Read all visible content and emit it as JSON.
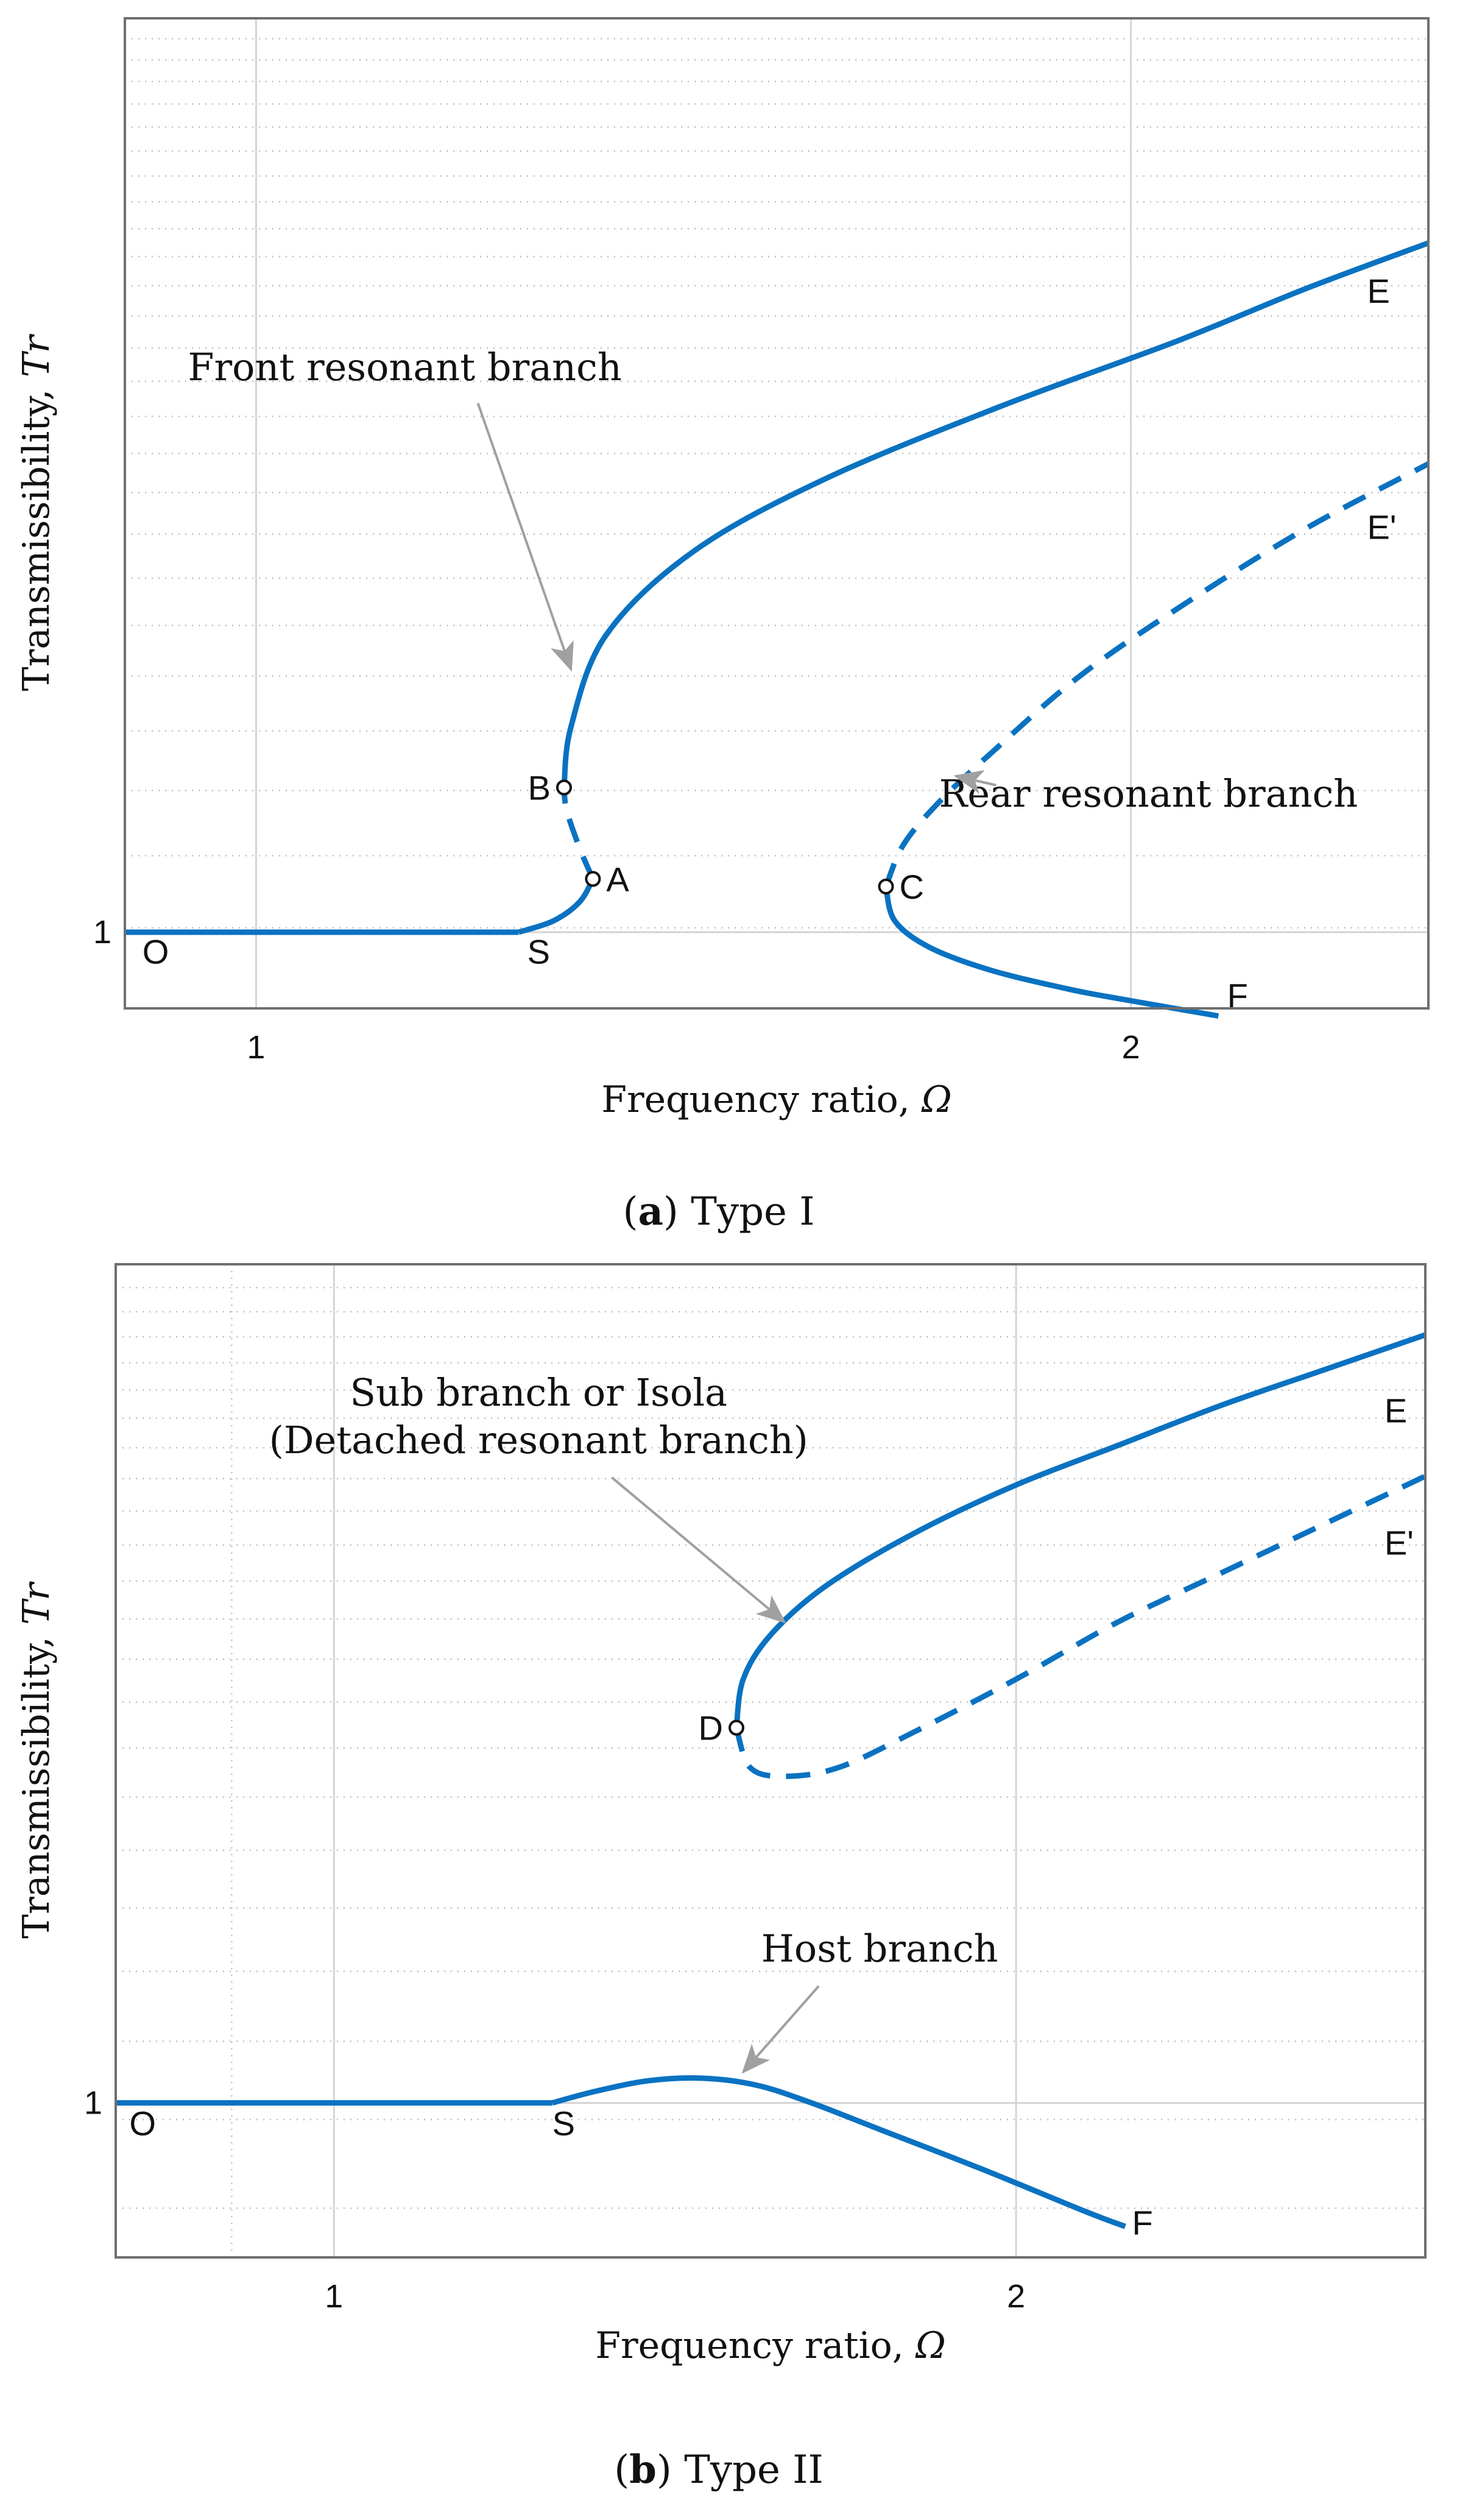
{
  "colors": {
    "curve": "#0a72c1",
    "axes": "#6f6f6f",
    "grid_major": "#d4d4d4",
    "grid_minor": "#bdbdbd",
    "annotation_arrow": "#a0a0a0",
    "text": "#111111"
  },
  "chart_data": [
    {
      "type": "line",
      "panel_label": "a",
      "caption": "Type I",
      "xlabel": "Frequency ratio, ",
      "xlabel_symbol": "Ω",
      "ylabel": "Transmissibility, ",
      "ylabel_symbol": "Tr",
      "xlim": [
        0.85,
        2.34
      ],
      "ylim": [
        0.8,
        3.4
      ],
      "xticks": [
        1,
        2
      ],
      "yticks": [
        1
      ],
      "series": [
        {
          "name": "host-flat",
          "style": "solid",
          "points": [
            [
              0.85,
              1.0
            ],
            [
              1.3,
              1.0
            ]
          ]
        },
        {
          "name": "front-rise",
          "style": "solid",
          "points": [
            [
              1.3,
              1.0
            ],
            [
              1.34,
              1.03
            ],
            [
              1.37,
              1.08
            ],
            [
              1.385,
              1.14
            ]
          ]
        },
        {
          "name": "front-unstable",
          "style": "dashed",
          "points": [
            [
              1.385,
              1.14
            ],
            [
              1.37,
              1.22
            ],
            [
              1.355,
              1.32
            ],
            [
              1.352,
              1.38
            ]
          ]
        },
        {
          "name": "front-resonant-branch",
          "style": "solid",
          "points": [
            [
              1.352,
              1.38
            ],
            [
              1.36,
              1.54
            ],
            [
              1.4,
              1.78
            ],
            [
              1.5,
              2.0
            ],
            [
              1.65,
              2.19
            ],
            [
              1.85,
              2.38
            ],
            [
              2.05,
              2.55
            ],
            [
              2.2,
              2.69
            ],
            [
              2.34,
              2.81
            ]
          ]
        },
        {
          "name": "rear-upper-dashed",
          "style": "dashed",
          "points": [
            [
              1.72,
              1.12
            ],
            [
              1.74,
              1.23
            ],
            [
              1.78,
              1.34
            ],
            [
              1.84,
              1.47
            ],
            [
              1.94,
              1.67
            ],
            [
              2.06,
              1.86
            ],
            [
              2.2,
              2.06
            ],
            [
              2.34,
              2.23
            ]
          ]
        },
        {
          "name": "rear-lower",
          "style": "solid",
          "points": [
            [
              1.72,
              1.12
            ],
            [
              1.73,
              1.03
            ],
            [
              1.77,
              0.96
            ],
            [
              1.84,
              0.9
            ],
            [
              1.93,
              0.85
            ],
            [
              2.0,
              0.82
            ],
            [
              2.1,
              0.78
            ]
          ]
        }
      ],
      "markers": [
        {
          "label": "B",
          "x": 1.352,
          "y": 1.38
        },
        {
          "label": "A",
          "x": 1.385,
          "y": 1.14
        },
        {
          "label": "C",
          "x": 1.72,
          "y": 1.12
        }
      ],
      "point_labels": [
        {
          "label": "O",
          "x": 0.87,
          "y": 0.985
        },
        {
          "label": "S",
          "x": 1.31,
          "y": 0.985
        },
        {
          "label": "E",
          "x": 2.27,
          "y": 2.72
        },
        {
          "label": "E'",
          "x": 2.27,
          "y": 2.1
        },
        {
          "label": "F",
          "x": 2.11,
          "y": 0.87
        }
      ],
      "annotations": [
        {
          "text": "Front resonant branch",
          "tx": 1.17,
          "ty": 2.45,
          "ax": 1.36,
          "ay": 1.69
        },
        {
          "text": "Rear resonant branch",
          "tx": 2.02,
          "ty": 1.33,
          "ax": 1.8,
          "ay": 1.41
        }
      ]
    },
    {
      "type": "line",
      "panel_label": "b",
      "caption": "Type II",
      "xlabel": "Frequency ratio, ",
      "xlabel_symbol": "Ω",
      "ylabel": "Transmissibility, ",
      "ylabel_symbol": "Tr",
      "xlim": [
        0.68,
        2.6
      ],
      "ylim": [
        0.65,
        2.9
      ],
      "xticks": [
        1,
        2
      ],
      "yticks": [
        1
      ],
      "series": [
        {
          "name": "host-flat",
          "style": "solid",
          "points": [
            [
              0.68,
              1.0
            ],
            [
              1.32,
              1.0
            ]
          ]
        },
        {
          "name": "host-branch",
          "style": "solid",
          "points": [
            [
              1.32,
              1.0
            ],
            [
              1.38,
              1.025
            ],
            [
              1.46,
              1.05
            ],
            [
              1.54,
              1.056
            ],
            [
              1.62,
              1.04
            ],
            [
              1.7,
              1.0
            ],
            [
              1.8,
              0.94
            ],
            [
              1.95,
              0.85
            ],
            [
              2.1,
              0.755
            ],
            [
              2.16,
              0.72
            ]
          ]
        },
        {
          "name": "isola-upper",
          "style": "solid",
          "points": [
            [
              1.59,
              1.85
            ],
            [
              1.6,
              1.96
            ],
            [
              1.64,
              2.06
            ],
            [
              1.72,
              2.17
            ],
            [
              1.85,
              2.29
            ],
            [
              2.0,
              2.4
            ],
            [
              2.15,
              2.49
            ],
            [
              2.3,
              2.58
            ],
            [
              2.45,
              2.66
            ],
            [
              2.6,
              2.74
            ]
          ]
        },
        {
          "name": "isola-lower-dashed",
          "style": "dashed",
          "points": [
            [
              1.59,
              1.85
            ],
            [
              1.61,
              1.76
            ],
            [
              1.66,
              1.74
            ],
            [
              1.74,
              1.76
            ],
            [
              1.85,
              1.84
            ],
            [
              2.0,
              1.96
            ],
            [
              2.15,
              2.09
            ],
            [
              2.3,
              2.2
            ],
            [
              2.45,
              2.31
            ],
            [
              2.6,
              2.42
            ]
          ]
        }
      ],
      "markers": [
        {
          "label": "D",
          "x": 1.59,
          "y": 1.85
        }
      ],
      "point_labels": [
        {
          "label": "O",
          "x": 0.7,
          "y": 0.985
        },
        {
          "label": "S",
          "x": 1.32,
          "y": 0.985
        },
        {
          "label": "E",
          "x": 2.54,
          "y": 2.6
        },
        {
          "label": "E'",
          "x": 2.54,
          "y": 2.3
        },
        {
          "label": "F",
          "x": 2.17,
          "y": 0.76
        }
      ],
      "annotations": [
        {
          "text": "Sub branch or Isola",
          "text2": "(Detached resonant branch)",
          "tx": 1.3,
          "ty": 2.58,
          "ax": 1.66,
          "ay": 2.09
        },
        {
          "text": "Host branch",
          "tx": 1.8,
          "ty": 1.32,
          "ax": 1.6,
          "ay": 1.07
        }
      ]
    }
  ]
}
